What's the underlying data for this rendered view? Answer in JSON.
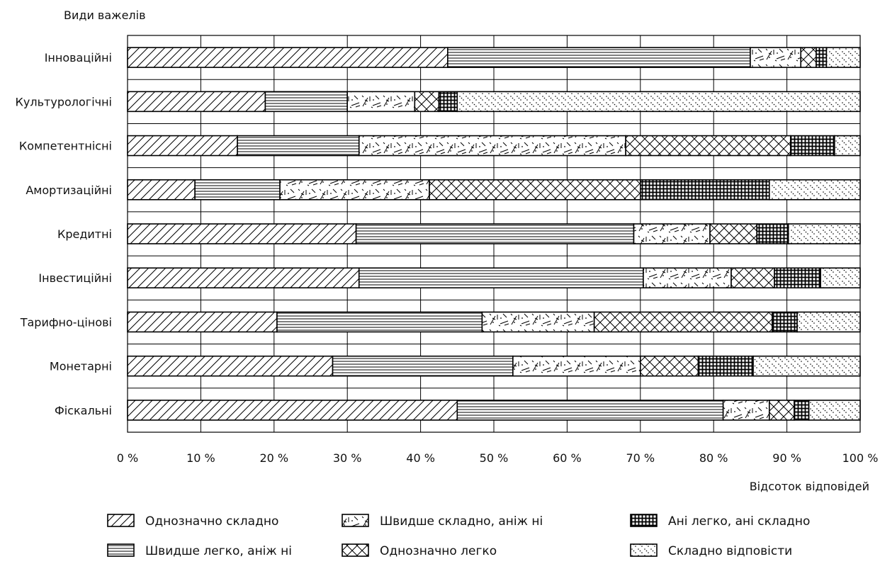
{
  "chart_data": {
    "type": "bar",
    "orientation": "horizontal",
    "stacked": "percent",
    "ylabel": "Види важелів",
    "xlabel": "Відсоток відповідей",
    "categories": [
      "Інноваційні",
      "Культурологічні",
      "Компетентнісні",
      "Амортизаційні",
      "Кредитні",
      "Інвестиційні",
      "Тарифно-цінові",
      "Монетарні",
      "Фіскальні"
    ],
    "x_ticks": [
      "0 %",
      "10 %",
      "20 %",
      "30 %",
      "40 %",
      "50 %",
      "60 %",
      "70 %",
      "80 %",
      "90 %",
      "100 %"
    ],
    "xlim": [
      0,
      100
    ],
    "grid": true,
    "legend_position": "bottom",
    "series": [
      {
        "name": "Однозначно складно",
        "pattern": "diagonal",
        "values": [
          43.7,
          18.8,
          15.0,
          9.2,
          31.2,
          31.6,
          20.4,
          28.0,
          45.0
        ]
      },
      {
        "name": "Швидше легко, аніж ні",
        "pattern": "horizontal",
        "values": [
          41.3,
          11.2,
          16.6,
          11.6,
          37.9,
          38.8,
          28.0,
          24.6,
          36.3
        ]
      },
      {
        "name": "Швидше складно, аніж ні",
        "pattern": "scribble",
        "values": [
          6.9,
          9.2,
          36.4,
          20.4,
          10.4,
          12.0,
          15.3,
          17.4,
          6.3
        ]
      },
      {
        "name": "Однозначно легко",
        "pattern": "crosshatch",
        "values": [
          2.1,
          3.3,
          22.5,
          28.8,
          6.4,
          5.9,
          24.3,
          7.9,
          3.4
        ]
      },
      {
        "name": "Ані легко, ані складно",
        "pattern": "grid",
        "values": [
          1.4,
          2.5,
          6.0,
          17.6,
          4.3,
          6.3,
          3.4,
          7.5,
          2.0
        ]
      },
      {
        "name": "Складно відповісти",
        "pattern": "dotted",
        "values": [
          4.6,
          55.0,
          3.5,
          12.4,
          9.8,
          5.4,
          8.6,
          14.6,
          7.0
        ]
      }
    ]
  }
}
